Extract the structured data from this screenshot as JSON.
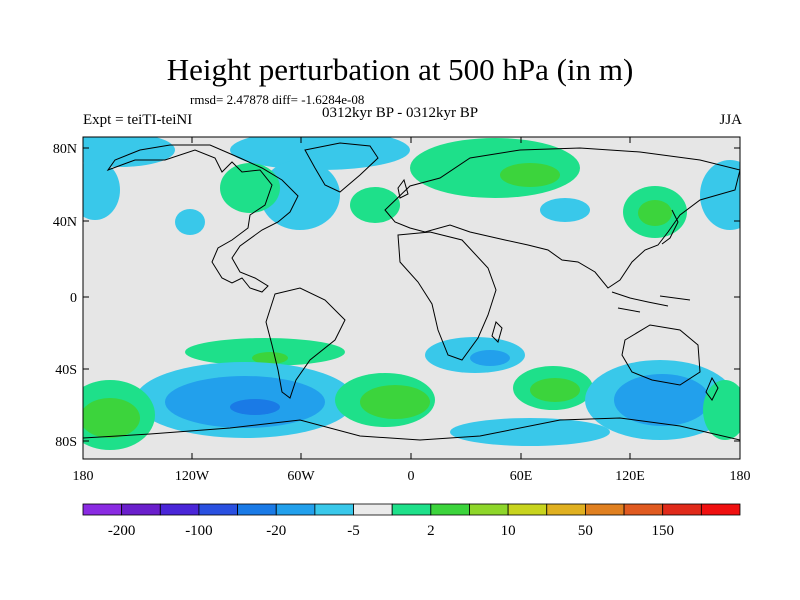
{
  "map": {
    "title": "Height perturbation at 500 hPa (in m)",
    "stats": "rmsd= 2.47878 diff= -1.6284e-08",
    "period": "0312kyr BP - 0312kyr BP",
    "experiment": "Expt = teiTI-teiNI",
    "season": "JJA",
    "projection": "cylindrical equidistant",
    "lon_range": [
      -180,
      180
    ],
    "lat_range": [
      -90,
      90
    ],
    "lat_ticks": [
      "80N",
      "40N",
      "0",
      "40S",
      "80S"
    ],
    "lon_ticks": [
      "180",
      "120W",
      "60W",
      "0",
      "60E",
      "120E",
      "180"
    ],
    "background_color": "#e6e6e6"
  },
  "colorbar": {
    "labels": [
      "-200",
      "-100",
      "-20",
      "-5",
      "2",
      "10",
      "50",
      "150"
    ],
    "colors": [
      "#8a2be2",
      "#6a1fcc",
      "#4a26d8",
      "#2a50e0",
      "#1a7ae6",
      "#22a0ec",
      "#39c8ea",
      "#ebebeb",
      "#1ee08a",
      "#3cd43c",
      "#8ed62a",
      "#c8d41e",
      "#e0b020",
      "#e08020",
      "#e05a20",
      "#e02a1a",
      "#f01010"
    ]
  }
}
